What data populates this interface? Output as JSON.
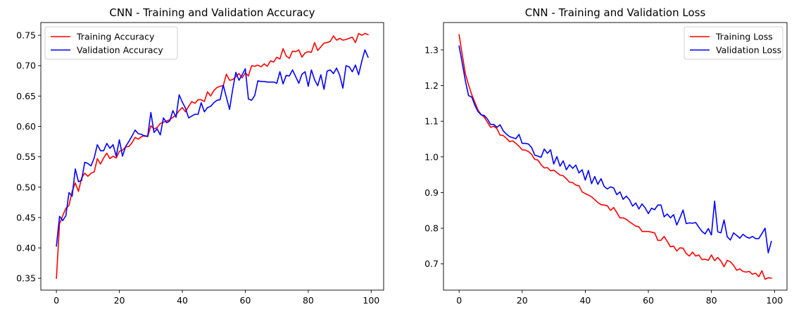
{
  "chart_data": [
    {
      "type": "line",
      "title": "CNN - Training and Validation Accuracy",
      "xlabel": "",
      "ylabel": "",
      "xlim": [
        -4.95,
        103.95
      ],
      "ylim": [
        0.3305,
        0.771
      ],
      "xticks": [
        0,
        20,
        40,
        60,
        80,
        100
      ],
      "yticks": [
        0.35,
        0.4,
        0.45,
        0.5,
        0.55,
        0.6,
        0.65,
        0.7,
        0.75
      ],
      "ytick_labels": [
        "0.35",
        "0.40",
        "0.45",
        "0.50",
        "0.55",
        "0.60",
        "0.65",
        "0.70",
        "0.75"
      ],
      "grid": false,
      "legend_position": "upper-left",
      "series": [
        {
          "name": "Training Accuracy",
          "color": "#ff0000",
          "values": [
            0.35,
            0.44,
            0.453,
            0.465,
            0.47,
            0.493,
            0.507,
            0.493,
            0.515,
            0.523,
            0.518,
            0.523,
            0.525,
            0.547,
            0.538,
            0.548,
            0.556,
            0.547,
            0.551,
            0.548,
            0.559,
            0.561,
            0.566,
            0.567,
            0.573,
            0.582,
            0.579,
            0.583,
            0.585,
            0.583,
            0.601,
            0.596,
            0.598,
            0.605,
            0.607,
            0.609,
            0.611,
            0.615,
            0.619,
            0.626,
            0.631,
            0.624,
            0.633,
            0.641,
            0.638,
            0.644,
            0.644,
            0.641,
            0.657,
            0.65,
            0.659,
            0.664,
            0.666,
            0.667,
            0.686,
            0.676,
            0.677,
            0.682,
            0.687,
            0.68,
            0.688,
            0.683,
            0.7,
            0.699,
            0.701,
            0.698,
            0.703,
            0.699,
            0.708,
            0.706,
            0.714,
            0.711,
            0.728,
            0.716,
            0.712,
            0.724,
            0.723,
            0.726,
            0.714,
            0.721,
            0.723,
            0.722,
            0.738,
            0.725,
            0.731,
            0.737,
            0.738,
            0.74,
            0.749,
            0.742,
            0.745,
            0.742,
            0.743,
            0.745,
            0.747,
            0.738,
            0.753,
            0.75,
            0.753,
            0.751
          ]
        },
        {
          "name": "Validation Accuracy",
          "color": "#0000ff",
          "values": [
            0.403,
            0.452,
            0.445,
            0.453,
            0.491,
            0.485,
            0.53,
            0.509,
            0.511,
            0.541,
            0.539,
            0.535,
            0.548,
            0.57,
            0.56,
            0.56,
            0.572,
            0.564,
            0.57,
            0.551,
            0.578,
            0.551,
            0.567,
            0.575,
            0.584,
            0.594,
            0.588,
            0.587,
            0.584,
            0.584,
            0.623,
            0.59,
            0.596,
            0.586,
            0.614,
            0.606,
            0.609,
            0.626,
            0.615,
            0.652,
            0.64,
            0.63,
            0.614,
            0.617,
            0.62,
            0.62,
            0.639,
            0.624,
            0.631,
            0.633,
            0.639,
            0.643,
            0.644,
            0.668,
            0.648,
            0.628,
            0.661,
            0.689,
            0.676,
            0.685,
            0.695,
            0.645,
            0.643,
            0.651,
            0.675,
            0.674,
            0.674,
            0.673,
            0.673,
            0.673,
            0.671,
            0.69,
            0.67,
            0.684,
            0.683,
            0.693,
            0.682,
            0.671,
            0.686,
            0.69,
            0.666,
            0.693,
            0.677,
            0.667,
            0.685,
            0.661,
            0.691,
            0.693,
            0.687,
            0.696,
            0.684,
            0.663,
            0.7,
            0.698,
            0.69,
            0.701,
            0.685,
            0.707,
            0.726,
            0.714
          ]
        }
      ]
    },
    {
      "type": "line",
      "title": "CNN - Training and Validation Loss",
      "xlabel": "",
      "ylabel": "",
      "xlim": [
        -4.95,
        103.95
      ],
      "ylim": [
        0.6264,
        1.3768
      ],
      "xticks": [
        0,
        20,
        40,
        60,
        80,
        100
      ],
      "yticks": [
        0.7,
        0.8,
        0.9,
        1.0,
        1.1,
        1.2,
        1.3
      ],
      "ytick_labels": [
        "0.7",
        "0.8",
        "0.9",
        "1.0",
        "1.1",
        "1.2",
        "1.3"
      ],
      "grid": false,
      "legend_position": "upper-right",
      "series": [
        {
          "name": "Training Loss",
          "color": "#ff0000",
          "values": [
            1.343,
            1.287,
            1.233,
            1.202,
            1.175,
            1.153,
            1.131,
            1.119,
            1.111,
            1.097,
            1.083,
            1.086,
            1.079,
            1.061,
            1.06,
            1.052,
            1.043,
            1.045,
            1.038,
            1.03,
            1.02,
            1.019,
            1.015,
            1.007,
            0.993,
            0.991,
            0.978,
            0.969,
            0.97,
            0.961,
            0.963,
            0.956,
            0.949,
            0.947,
            0.939,
            0.929,
            0.928,
            0.921,
            0.919,
            0.902,
            0.897,
            0.893,
            0.888,
            0.88,
            0.872,
            0.866,
            0.865,
            0.863,
            0.85,
            0.858,
            0.844,
            0.829,
            0.829,
            0.825,
            0.818,
            0.812,
            0.806,
            0.804,
            0.791,
            0.791,
            0.791,
            0.789,
            0.787,
            0.766,
            0.766,
            0.777,
            0.763,
            0.748,
            0.75,
            0.736,
            0.745,
            0.744,
            0.729,
            0.722,
            0.733,
            0.722,
            0.725,
            0.712,
            0.713,
            0.71,
            0.725,
            0.709,
            0.718,
            0.708,
            0.692,
            0.71,
            0.706,
            0.696,
            0.682,
            0.686,
            0.679,
            0.677,
            0.679,
            0.671,
            0.674,
            0.664,
            0.681,
            0.657,
            0.661,
            0.66
          ]
        },
        {
          "name": "Validation Loss",
          "color": "#0000ff",
          "values": [
            1.311,
            1.263,
            1.213,
            1.172,
            1.168,
            1.145,
            1.127,
            1.118,
            1.116,
            1.106,
            1.091,
            1.091,
            1.083,
            1.09,
            1.073,
            1.064,
            1.057,
            1.054,
            1.051,
            1.063,
            1.038,
            1.038,
            1.036,
            1.026,
            1.005,
            1.002,
            0.999,
            1.022,
            1.01,
            1.02,
            0.98,
            1.001,
            0.974,
            0.989,
            0.964,
            0.978,
            0.968,
            0.977,
            0.955,
            0.964,
            0.935,
            0.962,
            0.925,
            0.945,
            0.923,
            0.939,
            0.917,
            0.91,
            0.916,
            0.913,
            0.894,
            0.902,
            0.881,
            0.89,
            0.88,
            0.862,
            0.871,
            0.854,
            0.868,
            0.857,
            0.841,
            0.856,
            0.852,
            0.865,
            0.865,
            0.832,
            0.84,
            0.829,
            0.838,
            0.809,
            0.829,
            0.851,
            0.813,
            0.815,
            0.814,
            0.816,
            0.803,
            0.791,
            0.784,
            0.799,
            0.781,
            0.876,
            0.79,
            0.787,
            0.823,
            0.776,
            0.767,
            0.787,
            0.78,
            0.772,
            0.783,
            0.776,
            0.772,
            0.777,
            0.771,
            0.771,
            0.785,
            0.8,
            0.731,
            0.763
          ]
        }
      ]
    }
  ]
}
